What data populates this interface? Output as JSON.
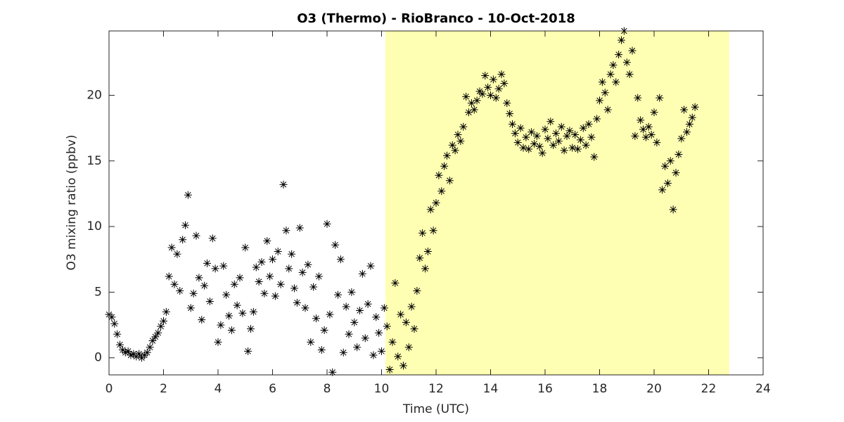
{
  "chart_data": {
    "type": "scatter",
    "title": "O3 (Thermo) - RioBranco - 10-Oct-2018",
    "x_label": "Time (UTC)",
    "y_label": "O3 mixing ratio (ppbv)",
    "marker": "asterisk",
    "color": "#000000",
    "shaded_region": {
      "xlim": [
        10.14,
        22.76
      ],
      "color": "#ffffb3"
    },
    "xlim": [
      0,
      24
    ],
    "ylim": [
      -1.3,
      24.9
    ],
    "xticks": [
      0,
      2,
      4,
      6,
      8,
      10,
      12,
      14,
      16,
      18,
      20,
      22,
      24
    ],
    "yticks": [
      0,
      5,
      10,
      15,
      20
    ],
    "x": [
      0,
      0.1,
      0.2,
      0.3,
      0.4,
      0.5,
      0.6,
      0.7,
      0.8,
      0.9,
      1,
      1.1,
      1.2,
      1.3,
      1.4,
      1.5,
      1.6,
      1.7,
      1.8,
      1.9,
      2,
      2.1,
      2.2,
      2.3,
      2.4,
      2.5,
      2.6,
      2.7,
      2.8,
      2.9,
      3,
      3.1,
      3.2,
      3.3,
      3.4,
      3.5,
      3.6,
      3.7,
      3.8,
      3.9,
      4,
      4.1,
      4.2,
      4.3,
      4.4,
      4.5,
      4.6,
      4.7,
      4.8,
      4.9,
      5,
      5.1,
      5.2,
      5.3,
      5.4,
      5.5,
      5.6,
      5.7,
      5.8,
      5.9,
      6,
      6.1,
      6.2,
      6.3,
      6.4,
      6.5,
      6.6,
      6.7,
      6.8,
      6.9,
      7,
      7.1,
      7.2,
      7.3,
      7.4,
      7.5,
      7.6,
      7.7,
      7.8,
      7.9,
      8,
      8.1,
      8.2,
      8.3,
      8.4,
      8.5,
      8.6,
      8.7,
      8.8,
      8.9,
      9,
      9.1,
      9.2,
      9.3,
      9.4,
      9.5,
      9.6,
      9.7,
      9.8,
      9.9,
      10,
      10.1,
      10.2,
      10.3,
      10.4,
      10.5,
      10.6,
      10.7,
      10.8,
      10.9,
      11,
      11.1,
      11.2,
      11.3,
      11.4,
      11.5,
      11.6,
      11.7,
      11.8,
      11.9,
      12,
      12.1,
      12.2,
      12.3,
      12.4,
      12.5,
      12.6,
      12.7,
      12.8,
      12.9,
      13,
      13.1,
      13.2,
      13.3,
      13.4,
      13.5,
      13.6,
      13.7,
      13.8,
      13.9,
      14,
      14.1,
      14.2,
      14.3,
      14.4,
      14.5,
      14.6,
      14.7,
      14.8,
      14.9,
      15,
      15.1,
      15.2,
      15.3,
      15.4,
      15.5,
      15.6,
      15.7,
      15.8,
      15.9,
      16,
      16.1,
      16.2,
      16.3,
      16.4,
      16.5,
      16.6,
      16.7,
      16.8,
      16.9,
      17,
      17.1,
      17.2,
      17.3,
      17.4,
      17.5,
      17.6,
      17.7,
      17.8,
      17.9,
      18,
      18.1,
      18.2,
      18.3,
      18.4,
      18.5,
      18.6,
      18.7,
      18.8,
      18.9,
      19,
      19.1,
      19.2,
      19.3,
      19.4,
      19.5,
      19.6,
      19.7,
      19.8,
      19.9,
      20,
      20.1,
      20.2,
      20.3,
      20.4,
      20.5,
      20.6,
      20.7,
      20.8,
      20.9,
      21,
      21.1,
      21.2,
      21.3,
      21.4,
      21.5
    ],
    "values": [
      3.3,
      3.1,
      2.6,
      1.8,
      1.0,
      0.6,
      0.4,
      0.5,
      0.2,
      0.3,
      0.1,
      0.3,
      0.0,
      0.2,
      0.4,
      0.8,
      1.3,
      1.6,
      1.9,
      2.4,
      2.8,
      3.5,
      6.2,
      8.4,
      5.6,
      7.9,
      5.1,
      9.0,
      10.1,
      12.4,
      3.8,
      4.9,
      9.3,
      6.1,
      2.9,
      5.5,
      7.2,
      4.3,
      9.1,
      6.8,
      1.2,
      2.5,
      7.0,
      4.8,
      3.2,
      2.1,
      5.6,
      4.0,
      6.1,
      3.4,
      8.4,
      0.5,
      2.2,
      3.5,
      6.9,
      5.8,
      7.3,
      4.9,
      8.9,
      6.2,
      7.5,
      4.7,
      8.1,
      5.6,
      13.2,
      9.7,
      6.8,
      7.9,
      5.3,
      4.2,
      9.9,
      6.5,
      3.8,
      7.1,
      1.2,
      5.4,
      3.0,
      6.2,
      0.6,
      2.1,
      10.2,
      3.3,
      -1.1,
      8.6,
      4.8,
      7.5,
      0.4,
      3.9,
      1.8,
      5.0,
      2.7,
      0.8,
      3.6,
      6.4,
      1.5,
      4.1,
      7.0,
      0.2,
      3.1,
      1.9,
      0.5,
      3.8,
      2.4,
      -0.9,
      1.2,
      5.7,
      0.1,
      3.3,
      -0.6,
      2.7,
      0.8,
      3.9,
      2.2,
      5.1,
      7.6,
      9.5,
      6.8,
      8.1,
      11.3,
      9.7,
      11.8,
      13.9,
      12.7,
      14.6,
      15.4,
      13.5,
      16.2,
      15.8,
      17.0,
      16.5,
      17.6,
      19.9,
      18.7,
      19.4,
      18.9,
      19.6,
      20.3,
      20.1,
      21.5,
      20.6,
      20.0,
      21.2,
      19.8,
      20.5,
      21.6,
      20.9,
      19.4,
      18.6,
      17.8,
      17.1,
      16.4,
      17.5,
      16.0,
      16.8,
      15.9,
      17.2,
      16.3,
      16.9,
      16.1,
      15.6,
      17.4,
      16.7,
      18.0,
      16.2,
      17.1,
      16.5,
      17.6,
      15.8,
      16.9,
      17.3,
      16.0,
      17.0,
      15.9,
      16.6,
      17.5,
      16.2,
      17.8,
      16.8,
      15.3,
      18.2,
      19.6,
      21.0,
      20.2,
      18.9,
      21.6,
      22.3,
      21.0,
      23.1,
      24.2,
      24.9,
      22.5,
      21.6,
      23.4,
      16.9,
      19.8,
      18.1,
      17.4,
      16.8,
      17.6,
      17.0,
      18.7,
      16.4,
      19.8,
      12.8,
      14.6,
      13.3,
      15.0,
      11.3,
      14.1,
      15.5,
      16.7,
      18.9,
      17.2,
      17.8,
      18.3,
      19.1
    ]
  }
}
